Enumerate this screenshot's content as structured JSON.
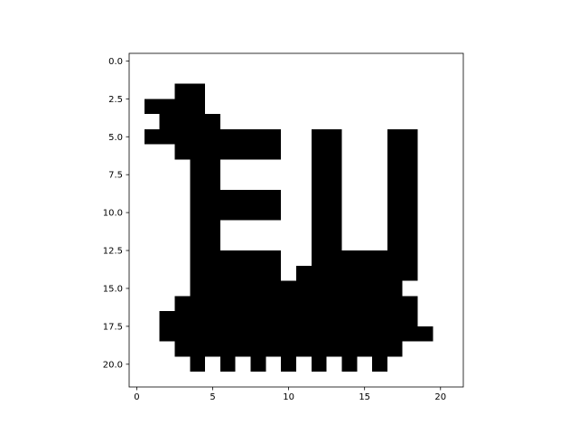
{
  "chart_data": {
    "type": "image",
    "values": [
      [
        0,
        0,
        0,
        0,
        0,
        0,
        0,
        0,
        0,
        0,
        0,
        0,
        0,
        0,
        0,
        0,
        0,
        0,
        0,
        0,
        0,
        0
      ],
      [
        0,
        0,
        0,
        0,
        0,
        0,
        0,
        0,
        0,
        0,
        0,
        0,
        0,
        0,
        0,
        0,
        0,
        0,
        0,
        0,
        0,
        0
      ],
      [
        0,
        0,
        0,
        1,
        1,
        0,
        0,
        0,
        0,
        0,
        0,
        0,
        0,
        0,
        0,
        0,
        0,
        0,
        0,
        0,
        0,
        0
      ],
      [
        0,
        1,
        1,
        1,
        1,
        0,
        0,
        0,
        0,
        0,
        0,
        0,
        0,
        0,
        0,
        0,
        0,
        0,
        0,
        0,
        0,
        0
      ],
      [
        0,
        0,
        1,
        1,
        1,
        1,
        0,
        0,
        0,
        0,
        0,
        0,
        0,
        0,
        0,
        0,
        0,
        0,
        0,
        0,
        0,
        0
      ],
      [
        0,
        1,
        1,
        1,
        1,
        1,
        1,
        1,
        1,
        1,
        0,
        0,
        1,
        1,
        0,
        0,
        0,
        1,
        1,
        0,
        0,
        0
      ],
      [
        0,
        0,
        0,
        1,
        1,
        1,
        1,
        1,
        1,
        1,
        0,
        0,
        1,
        1,
        0,
        0,
        0,
        1,
        1,
        0,
        0,
        0
      ],
      [
        0,
        0,
        0,
        0,
        1,
        1,
        0,
        0,
        0,
        0,
        0,
        0,
        1,
        1,
        0,
        0,
        0,
        1,
        1,
        0,
        0,
        0
      ],
      [
        0,
        0,
        0,
        0,
        1,
        1,
        0,
        0,
        0,
        0,
        0,
        0,
        1,
        1,
        0,
        0,
        0,
        1,
        1,
        0,
        0,
        0
      ],
      [
        0,
        0,
        0,
        0,
        1,
        1,
        1,
        1,
        1,
        1,
        0,
        0,
        1,
        1,
        0,
        0,
        0,
        1,
        1,
        0,
        0,
        0
      ],
      [
        0,
        0,
        0,
        0,
        1,
        1,
        1,
        1,
        1,
        1,
        0,
        0,
        1,
        1,
        0,
        0,
        0,
        1,
        1,
        0,
        0,
        0
      ],
      [
        0,
        0,
        0,
        0,
        1,
        1,
        0,
        0,
        0,
        0,
        0,
        0,
        1,
        1,
        0,
        0,
        0,
        1,
        1,
        0,
        0,
        0
      ],
      [
        0,
        0,
        0,
        0,
        1,
        1,
        0,
        0,
        0,
        0,
        0,
        0,
        1,
        1,
        0,
        0,
        0,
        1,
        1,
        0,
        0,
        0
      ],
      [
        0,
        0,
        0,
        0,
        1,
        1,
        1,
        1,
        1,
        1,
        0,
        0,
        1,
        1,
        1,
        1,
        1,
        1,
        1,
        0,
        0,
        0
      ],
      [
        0,
        0,
        0,
        0,
        1,
        1,
        1,
        1,
        1,
        1,
        0,
        1,
        1,
        1,
        1,
        1,
        1,
        1,
        1,
        0,
        0,
        0
      ],
      [
        0,
        0,
        0,
        0,
        1,
        1,
        1,
        1,
        1,
        1,
        1,
        1,
        1,
        1,
        1,
        1,
        1,
        1,
        0,
        0,
        0,
        0
      ],
      [
        0,
        0,
        0,
        1,
        1,
        1,
        1,
        1,
        1,
        1,
        1,
        1,
        1,
        1,
        1,
        1,
        1,
        1,
        1,
        0,
        0,
        0
      ],
      [
        0,
        0,
        1,
        1,
        1,
        1,
        1,
        1,
        1,
        1,
        1,
        1,
        1,
        1,
        1,
        1,
        1,
        1,
        1,
        0,
        0,
        0
      ],
      [
        0,
        0,
        1,
        1,
        1,
        1,
        1,
        1,
        1,
        1,
        1,
        1,
        1,
        1,
        1,
        1,
        1,
        1,
        1,
        1,
        0,
        0
      ],
      [
        0,
        0,
        0,
        1,
        1,
        1,
        1,
        1,
        1,
        1,
        1,
        1,
        1,
        1,
        1,
        1,
        1,
        1,
        0,
        0,
        0,
        0
      ],
      [
        0,
        0,
        0,
        0,
        1,
        0,
        1,
        0,
        1,
        0,
        1,
        0,
        1,
        0,
        1,
        0,
        1,
        0,
        0,
        0,
        0,
        0
      ],
      [
        0,
        0,
        0,
        0,
        0,
        0,
        0,
        0,
        0,
        0,
        0,
        0,
        0,
        0,
        0,
        0,
        0,
        0,
        0,
        0,
        0,
        0
      ]
    ],
    "colors": [
      "#ffffff",
      "#000000"
    ],
    "xlim": [
      -0.5,
      21.5
    ],
    "ylim": [
      21.5,
      -0.5
    ],
    "xticks": [
      0,
      5,
      10,
      15,
      20
    ],
    "yticks": [
      {
        "value": 0,
        "label": "0.0"
      },
      {
        "value": 2.5,
        "label": "2.5"
      },
      {
        "value": 5,
        "label": "5.0"
      },
      {
        "value": 7.5,
        "label": "7.5"
      },
      {
        "value": 10,
        "label": "10.0"
      },
      {
        "value": 12.5,
        "label": "12.5"
      },
      {
        "value": 15,
        "label": "15.0"
      },
      {
        "value": 17.5,
        "label": "17.5"
      },
      {
        "value": 20,
        "label": "20.0"
      }
    ]
  }
}
